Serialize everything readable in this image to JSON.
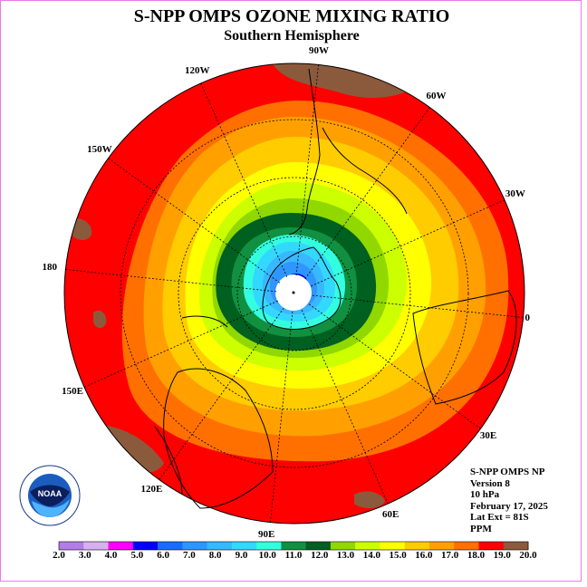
{
  "title": "S-NPP OMPS OZONE MIXING RATIO",
  "subtitle": "Southern Hemisphere",
  "longitude_labels": [
    "90W",
    "60W",
    "30W",
    "0",
    "30E",
    "60E",
    "90E",
    "120E",
    "150E",
    "180",
    "150W",
    "120W"
  ],
  "info": {
    "line1": "S-NPP OMPS NP",
    "line2": "Version 8",
    "line3": "10 hPa",
    "line4": "February 17, 2025",
    "line5": "Lat Ext = 81S",
    "line6": "PPM"
  },
  "logo_text": "NOAA",
  "logo_ring_text": "NATIONAL OCEANIC AND ATMOSPHERIC ADMINISTRATION · U.S. DEPARTMENT OF COMMERCE",
  "colorbar": {
    "labels": [
      "2.0",
      "3.0",
      "4.0",
      "5.0",
      "6.0",
      "7.0",
      "8.0",
      "9.0",
      "10.0",
      "11.0",
      "12.0",
      "13.0",
      "14.0",
      "15.0",
      "16.0",
      "17.0",
      "18.0",
      "19.0",
      "20.0"
    ],
    "colors": [
      "#b47ce8",
      "#d8b0f0",
      "#ff00ff",
      "#0000ff",
      "#1a6cff",
      "#2f96ff",
      "#38b8ff",
      "#33d8ff",
      "#33ffe0",
      "#109040",
      "#006020",
      "#90d800",
      "#ccff00",
      "#ffff00",
      "#ffcc00",
      "#ffa000",
      "#ff7000",
      "#ff0000",
      "#8b5a3c"
    ]
  },
  "chart_data": {
    "type": "map",
    "projection": "south polar stereographic",
    "variable": "ozone mixing ratio",
    "units": "PPM",
    "pressure_level": "10 hPa",
    "date": "February 17, 2025",
    "latitude_extent": "81S",
    "field_rings_ppm": [
      5.0,
      7.0,
      8.0,
      9.0,
      10.0,
      11.0,
      12.0,
      13.0,
      14.0,
      15.0,
      16.0,
      17.0,
      18.0,
      19.0
    ],
    "no_data_region": "south pole",
    "min_value": 2.0,
    "max_value": 20.0
  }
}
